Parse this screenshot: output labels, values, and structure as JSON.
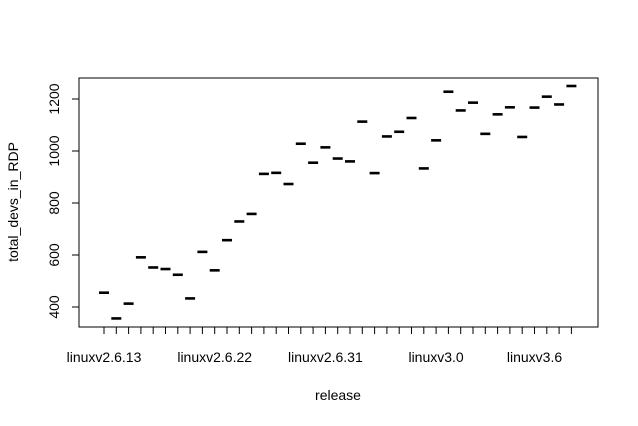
{
  "chart_data": {
    "type": "scatter",
    "marker": "horizontal-dash",
    "xlabel": "release",
    "ylabel": "total_devs_in_RDP",
    "ylim": [
      330,
      1290
    ],
    "yticks": [
      400,
      600,
      800,
      1000,
      1200
    ],
    "x_tick_labels": [
      {
        "index": 0,
        "label": "linuxv2.6.13"
      },
      {
        "index": 9,
        "label": "linuxv2.6.22"
      },
      {
        "index": 18,
        "label": "linuxv2.6.31"
      },
      {
        "index": 27,
        "label": "linuxv3.0"
      },
      {
        "index": 35,
        "label": "linuxv3.6"
      }
    ],
    "x_count": 39,
    "grid": false,
    "legend": "none",
    "values": [
      455,
      356,
      413,
      591,
      552,
      546,
      524,
      433,
      612,
      541,
      657,
      729,
      758,
      912,
      916,
      873,
      1028,
      955,
      1014,
      971,
      960,
      1113,
      915,
      1056,
      1074,
      1127,
      933,
      1041,
      1228,
      1156,
      1186,
      1066,
      1141,
      1168,
      1054,
      1167,
      1209,
      1179,
      1250
    ]
  }
}
